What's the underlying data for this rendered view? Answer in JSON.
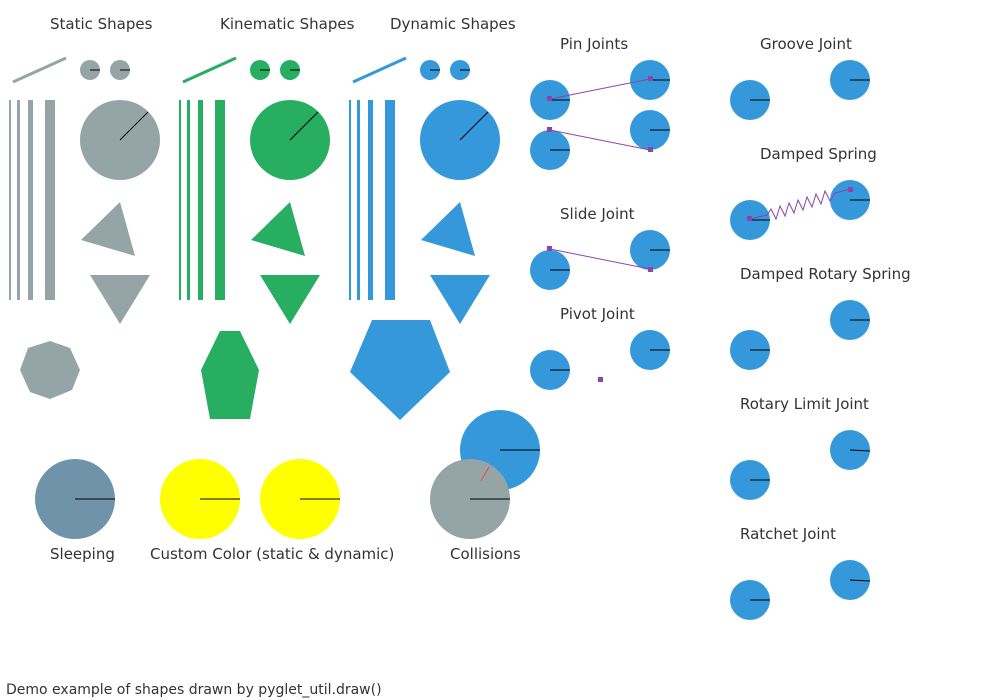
{
  "labels": {
    "static": "Static Shapes",
    "kinematic": "Kinematic Shapes",
    "dynamic": "Dynamic Shapes",
    "pin": "Pin Joints",
    "groove": "Groove Joint",
    "damped_spring": "Damped Spring",
    "slide": "Slide Joint",
    "damped_rotary": "Damped Rotary Spring",
    "pivot": "Pivot Joint",
    "rotary_limit": "Rotary Limit Joint",
    "ratchet": "Ratchet Joint",
    "sleeping": "Sleeping",
    "custom_color": "Custom Color (static & dynamic)",
    "collisions": "Collisions"
  },
  "footer": "Demo example of shapes drawn by pyglet_util.draw()",
  "colors": {
    "static": "#95a5a6",
    "kinematic": "#27ae60",
    "dynamic": "#3498db",
    "sleeping": "#6f93a8",
    "custom": "#ffff00",
    "constraint": "#8e44ad",
    "collision": "#e74c3c",
    "line": "#000000",
    "text": "#333333"
  }
}
